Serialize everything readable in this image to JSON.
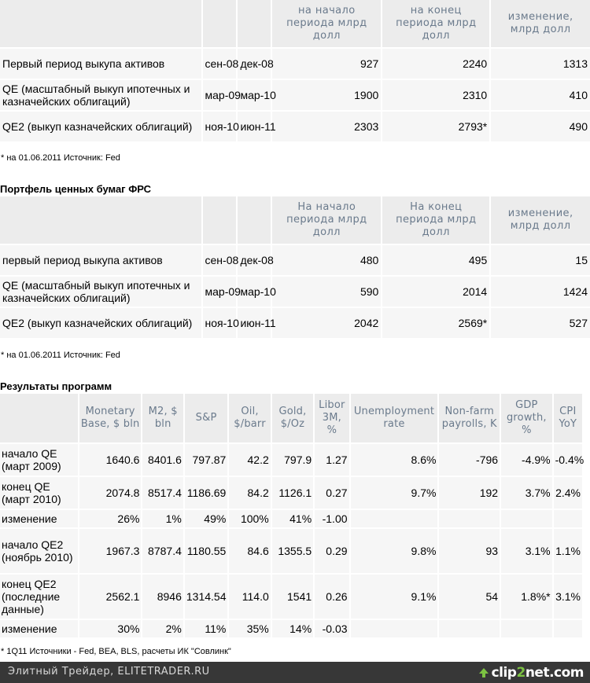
{
  "table1": {
    "headers": [
      "",
      "",
      "",
      "на начало периода млрд долл",
      "на конец периода млрд долл",
      "изменение, млрд долл"
    ],
    "rows": [
      [
        "Первый период выкупа активов",
        "сен-08",
        "дек-08",
        "927",
        "2240",
        "1313"
      ],
      [
        "QE (масштабный выкуп ипотечных и казначейских облигаций)",
        "мар-09",
        "мар-10",
        "1900",
        "2310",
        "410"
      ],
      [
        "QE2 (выкуп казначейских облигаций)",
        "ноя-10",
        "июн-11",
        "2303",
        "2793*",
        "490"
      ]
    ],
    "note": "* на 01.06.2011 Источник: Fed"
  },
  "table2": {
    "title": "Портфель ценных бумаг ФРС",
    "headers": [
      "",
      "",
      "",
      "На начало периода млрд долл",
      "На конец периода млрд долл",
      "изменение, млрд долл"
    ],
    "rows": [
      [
        "первый период выкупа активов",
        "сен-08",
        "дек-08",
        "480",
        "495",
        "15"
      ],
      [
        "QE (масштабный выкуп ипотечных и казначейских облигаций)",
        "мар-09",
        "мар-10",
        "590",
        "2014",
        "1424"
      ],
      [
        "QE2 (выкуп казначейских облигаций)",
        "ноя-10",
        "июн-11",
        "2042",
        "2569*",
        "527"
      ]
    ],
    "note": "* на 01.06.2011 Источник: Fed"
  },
  "table3": {
    "title": "Результаты программ",
    "headers": [
      "",
      "Monetary Base, $ bln",
      "M2, $ bln",
      "S&P",
      "Oil, $/barr",
      "Gold, $/Oz",
      "Libor 3M, %",
      "Unemployment rate",
      "Non-farm payrolls, K",
      "GDP growth, %",
      "CPI YoY"
    ],
    "rows": [
      [
        "начало QE (март 2009)",
        "1640.6",
        "8401.6",
        "797.87",
        "42.2",
        "797.9",
        "1.27",
        "8.6%",
        "-796",
        "-4.9%",
        "-0.4%"
      ],
      [
        "конец QE (март 2010)",
        "2074.8",
        "8517.4",
        "1186.69",
        "84.2",
        "1126.1",
        "0.27",
        "9.7%",
        "192",
        "3.7%",
        "2.4%"
      ],
      [
        "изменение",
        "26%",
        "1%",
        "49%",
        "100%",
        "41%",
        "-1.00",
        "",
        "",
        "",
        ""
      ],
      [
        "начало QE2 (ноябрь 2010)",
        "1967.3",
        "8787.4",
        "1180.55",
        "84.6",
        "1355.5",
        "0.29",
        "9.8%",
        "93",
        "3.1%",
        "1.1%"
      ],
      [
        "конец QE2 (последние данные)",
        "2562.1",
        "8946",
        "1314.54",
        "114.0",
        "1541",
        "0.26",
        "9.1%",
        "54",
        "1.8%*",
        "3.1%"
      ],
      [
        "изменение",
        "30%",
        "2%",
        "11%",
        "35%",
        "14%",
        "-0.03",
        "",
        "",
        "",
        ""
      ]
    ],
    "note": "* 1Q11 Источники - Fed, BEA, BLS, расчеты ИК \"Совлинк\""
  },
  "footer": {
    "text": "Элитный Трейдер, ELITETRADER.RU",
    "logo_part1": "clip",
    "logo_part2": "2",
    "logo_part3": "net.com"
  }
}
